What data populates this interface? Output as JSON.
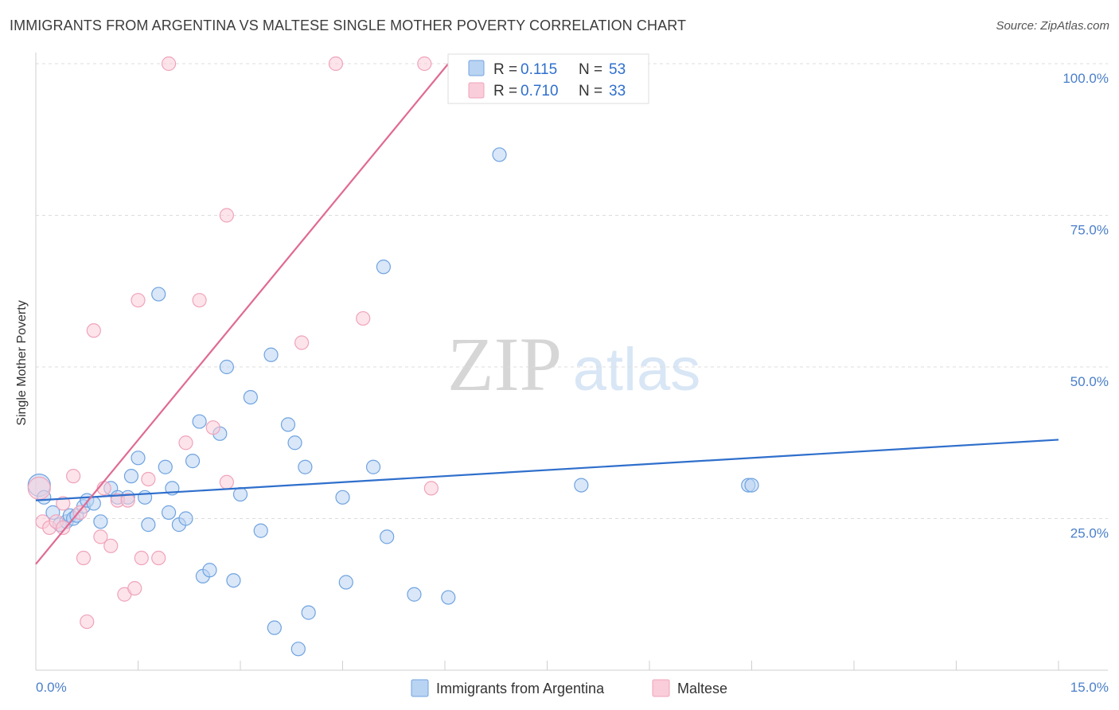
{
  "chart_data": {
    "type": "scatter",
    "title": "IMMIGRANTS FROM ARGENTINA VS MALTESE SINGLE MOTHER POVERTY CORRELATION CHART",
    "source": "Source: ZipAtlas.com",
    "ylabel": "Single Mother Poverty",
    "watermark": "ZIPatlas",
    "xlim": [
      0,
      15
    ],
    "ylim": [
      0,
      100
    ],
    "x_tick_labels": [
      "0.0%",
      "15.0%"
    ],
    "y_ticks": [
      25,
      50,
      75,
      100
    ],
    "y_tick_labels": [
      "25.0%",
      "50.0%",
      "75.0%",
      "100.0%"
    ],
    "grid": true,
    "legend_position": "top-center",
    "legend_entries": [
      {
        "r_label": "R =",
        "r_value": "0.115",
        "n_label": "N =",
        "n_value": "53"
      },
      {
        "r_label": "R =",
        "r_value": "0.710",
        "n_label": "N =",
        "n_value": "33"
      }
    ],
    "series": [
      {
        "name": "Immigrants from Argentina",
        "color": "#6fa3e0",
        "fill": "#b9d3f2",
        "trend_color": "#2f6fcc",
        "trend": [
          [
            0,
            28.0
          ],
          [
            15,
            38.0
          ]
        ],
        "points": [
          [
            0.05,
            30.5
          ],
          [
            0.12,
            28.5
          ],
          [
            0.25,
            26.0
          ],
          [
            0.35,
            24.0
          ],
          [
            0.45,
            24.5
          ],
          [
            0.5,
            25.5
          ],
          [
            0.55,
            25.0
          ],
          [
            0.6,
            25.5
          ],
          [
            0.7,
            27.0
          ],
          [
            0.75,
            28.0
          ],
          [
            0.85,
            27.5
          ],
          [
            0.95,
            24.5
          ],
          [
            1.1,
            30.0
          ],
          [
            1.2,
            28.5
          ],
          [
            1.35,
            28.5
          ],
          [
            1.4,
            32.0
          ],
          [
            1.5,
            35.0
          ],
          [
            1.6,
            28.5
          ],
          [
            1.65,
            24.0
          ],
          [
            1.8,
            62.0
          ],
          [
            1.9,
            33.5
          ],
          [
            1.95,
            26.0
          ],
          [
            2.0,
            30.0
          ],
          [
            2.1,
            24.0
          ],
          [
            2.2,
            25.0
          ],
          [
            2.3,
            34.5
          ],
          [
            2.4,
            41.0
          ],
          [
            2.45,
            15.5
          ],
          [
            2.55,
            16.5
          ],
          [
            2.7,
            39.0
          ],
          [
            2.8,
            50.0
          ],
          [
            2.9,
            14.8
          ],
          [
            3.0,
            29.0
          ],
          [
            3.15,
            45.0
          ],
          [
            3.3,
            23.0
          ],
          [
            3.45,
            52.0
          ],
          [
            3.5,
            7.0
          ],
          [
            3.7,
            40.5
          ],
          [
            3.8,
            37.5
          ],
          [
            3.85,
            3.5
          ],
          [
            3.95,
            33.5
          ],
          [
            4.0,
            9.5
          ],
          [
            4.5,
            28.5
          ],
          [
            4.55,
            14.5
          ],
          [
            4.95,
            33.5
          ],
          [
            5.1,
            66.5
          ],
          [
            5.15,
            22.0
          ],
          [
            5.55,
            12.5
          ],
          [
            6.05,
            12.0
          ],
          [
            6.8,
            85.0
          ],
          [
            8.0,
            30.5
          ],
          [
            10.45,
            30.5
          ],
          [
            10.5,
            30.5
          ]
        ]
      },
      {
        "name": "Maltese",
        "color": "#f0a3bb",
        "fill": "#f9cdd9",
        "trend_color": "#e06a92",
        "trend": [
          [
            0,
            17.5
          ],
          [
            6.05,
            100
          ]
        ],
        "points": [
          [
            0.05,
            30.0
          ],
          [
            0.1,
            24.5
          ],
          [
            0.2,
            23.5
          ],
          [
            0.3,
            24.5
          ],
          [
            0.4,
            23.5
          ],
          [
            0.4,
            27.5
          ],
          [
            0.55,
            32.0
          ],
          [
            0.65,
            26.0
          ],
          [
            0.7,
            18.5
          ],
          [
            0.75,
            8.0
          ],
          [
            0.85,
            56.0
          ],
          [
            0.95,
            22.0
          ],
          [
            1.0,
            30.0
          ],
          [
            1.1,
            20.5
          ],
          [
            1.2,
            28.0
          ],
          [
            1.3,
            12.5
          ],
          [
            1.35,
            28.0
          ],
          [
            1.45,
            13.5
          ],
          [
            1.5,
            61.0
          ],
          [
            1.55,
            18.5
          ],
          [
            1.65,
            31.5
          ],
          [
            1.8,
            18.5
          ],
          [
            1.95,
            100.0
          ],
          [
            2.2,
            37.5
          ],
          [
            2.4,
            61.0
          ],
          [
            2.6,
            40.0
          ],
          [
            2.8,
            31.0
          ],
          [
            2.8,
            75.0
          ],
          [
            3.9,
            54.0
          ],
          [
            4.4,
            100.0
          ],
          [
            4.8,
            58.0
          ],
          [
            5.7,
            100.0
          ],
          [
            5.8,
            30.0
          ]
        ]
      }
    ]
  }
}
